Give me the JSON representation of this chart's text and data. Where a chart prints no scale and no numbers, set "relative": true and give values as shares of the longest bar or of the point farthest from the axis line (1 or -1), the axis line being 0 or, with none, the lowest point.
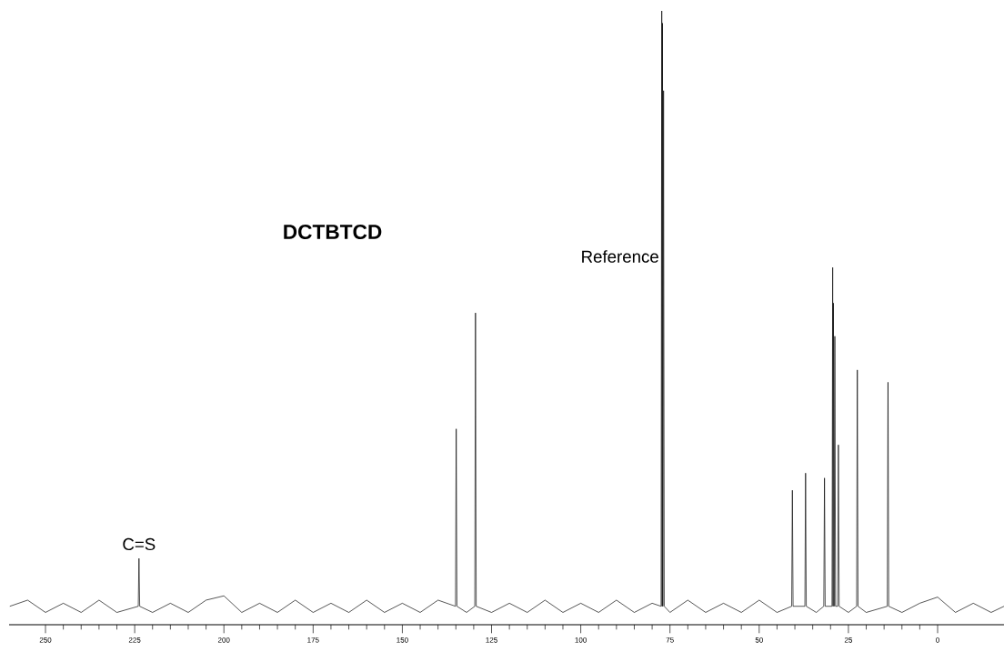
{
  "chart_data": {
    "type": "line",
    "title": "**DCTBTCD**",
    "relative": true,
    "color": "#000000",
    "annotations": [
      {
        "text": "Reference",
        "x": 77.3,
        "y": 0.6
      },
      {
        "text": "C=S",
        "x": 223.8,
        "y": 0.115
      }
    ],
    "xlim": [
      260.2,
      -18.6
    ],
    "xticks": [
      250,
      225,
      200,
      175,
      150,
      125,
      100,
      75,
      50,
      25,
      0
    ],
    "x": [
      260,
      255,
      250,
      245,
      240,
      235,
      230,
      224.0,
      223.8,
      223.6,
      220,
      215,
      210,
      205,
      200,
      195,
      190,
      185,
      180,
      175,
      170,
      165,
      160,
      155,
      150,
      145,
      140,
      135.1,
      134.9,
      134.7,
      132,
      129.7,
      129.5,
      129.3,
      125,
      120,
      115,
      110,
      105,
      100,
      95,
      90,
      85,
      80,
      77.5,
      77.3,
      77.2,
      77.1,
      77.0,
      76.8,
      76.6,
      75,
      70,
      65,
      60,
      55,
      50,
      45,
      40.9,
      40.7,
      40.5,
      37.2,
      37.0,
      36.8,
      34,
      31.9,
      31.7,
      31.5,
      29.6,
      29.4,
      29.3,
      29.2,
      29.0,
      28.8,
      28.6,
      28.0,
      27.8,
      27.6,
      25,
      22.7,
      22.5,
      22.3,
      20,
      14.1,
      13.9,
      13.7,
      10,
      5,
      0,
      -5,
      -10,
      -15,
      -18.6
    ],
    "values": [
      0.03,
      0.04,
      0.02,
      0.035,
      0.02,
      0.04,
      0.02,
      0.03,
      0.108,
      0.03,
      0.02,
      0.035,
      0.02,
      0.04,
      0.047,
      0.02,
      0.035,
      0.02,
      0.04,
      0.02,
      0.035,
      0.02,
      0.04,
      0.02,
      0.035,
      0.02,
      0.04,
      0.03,
      0.319,
      0.03,
      0.02,
      0.03,
      0.508,
      0.03,
      0.02,
      0.035,
      0.02,
      0.04,
      0.02,
      0.035,
      0.02,
      0.04,
      0.02,
      0.035,
      0.03,
      1.0,
      0.03,
      0.98,
      0.03,
      0.87,
      0.03,
      0.02,
      0.04,
      0.02,
      0.035,
      0.02,
      0.04,
      0.02,
      0.03,
      0.219,
      0.03,
      0.03,
      0.247,
      0.03,
      0.02,
      0.03,
      0.239,
      0.03,
      0.03,
      0.582,
      0.03,
      0.524,
      0.03,
      0.47,
      0.03,
      0.03,
      0.293,
      0.03,
      0.02,
      0.03,
      0.415,
      0.03,
      0.02,
      0.03,
      0.395,
      0.03,
      0.02,
      0.035,
      0.045,
      0.02,
      0.035,
      0.02,
      0.03
    ]
  }
}
